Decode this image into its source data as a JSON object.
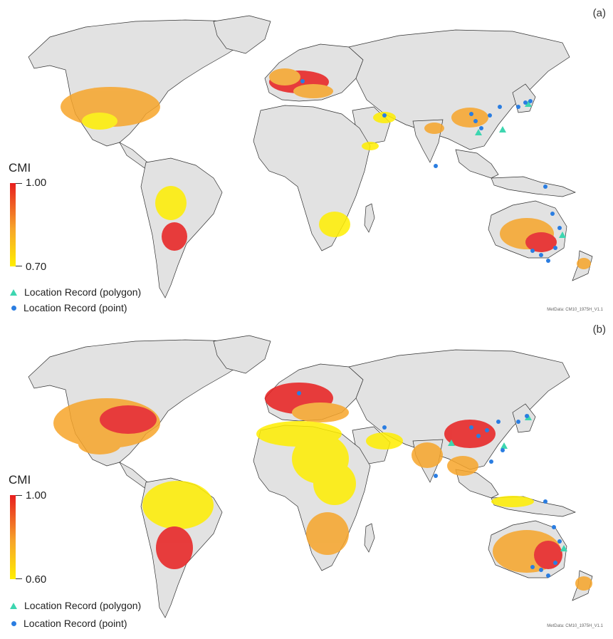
{
  "colors": {
    "land": "#e2e2e2",
    "border": "#303030",
    "ocean": "#ffffff",
    "cmi_low": "#ffee00",
    "cmi_mid": "#f7a52a",
    "cmi_high": "#e81e1e",
    "polygon_record": "#3dd6b0",
    "point_record": "#2a7de1"
  },
  "panels": [
    {
      "label": "(a)",
      "colorbar": {
        "title": "CMI",
        "max_label": "1.00",
        "min_label": "0.70"
      },
      "legend": {
        "polygon_label": "Location Record (polygon)",
        "point_label": "Location Record (point)"
      },
      "metadata": "MetData: CM10_1975H_V1.1"
    },
    {
      "label": "(b)",
      "colorbar": {
        "title": "CMI",
        "max_label": "1.00",
        "min_label": "0.60"
      },
      "legend": {
        "polygon_label": "Location Record (polygon)",
        "point_label": "Location Record (point)"
      },
      "metadata": "MetData: CM10_1975H_V1.1"
    }
  ]
}
